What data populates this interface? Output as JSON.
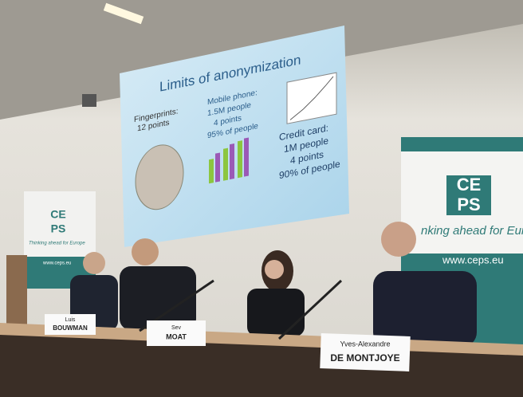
{
  "slide": {
    "title": "Limits of anonymization",
    "fingerprints": {
      "label": "Fingerprints:",
      "points": "12 points"
    },
    "mobile_phone": {
      "label": "Mobile phone:",
      "people": "1.5M people",
      "points": "4 points",
      "share": "95% of people"
    },
    "credit_card": {
      "label": "Credit card:",
      "people": "1M people",
      "points": "4 points",
      "share": "90% of people"
    }
  },
  "banners": [
    {
      "logo_top": "CE",
      "logo_bottom": "PS",
      "tagline": "Thinking ahead for Europe",
      "url": "www.ceps.eu"
    },
    {
      "logo_top": "CE",
      "logo_bottom": "PS",
      "tagline": "nking ahead for Eur",
      "url": "www.ceps.eu"
    }
  ],
  "name_cards": [
    {
      "first": "Luis",
      "last": "BOUWMAN"
    },
    {
      "first": "Sev",
      "last": "MOAT"
    },
    {
      "first": "Yves-Alexandre",
      "last": "DE MONTJOYE"
    }
  ]
}
